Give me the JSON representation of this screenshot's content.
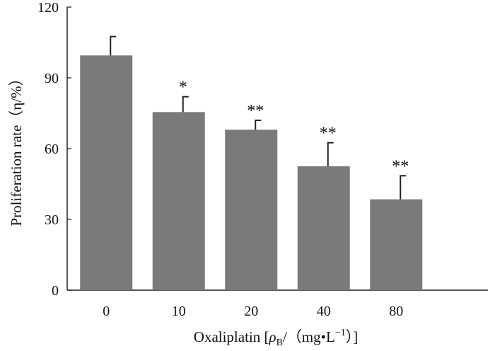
{
  "chart_data": {
    "type": "bar",
    "categories": [
      "0",
      "10",
      "20",
      "40",
      "80"
    ],
    "values": [
      99.5,
      75.5,
      68,
      52.5,
      38.5
    ],
    "errors": [
      8,
      6.5,
      4,
      10,
      10
    ],
    "significance": [
      "",
      "*",
      "**",
      "**",
      "**"
    ],
    "ylim": [
      0,
      120
    ],
    "yticks": [
      "0",
      "30",
      "60",
      "90",
      "120"
    ],
    "ylabel": "Proliferation rate（η/%）",
    "xlabel": "Oxaliplatin [ρB/(mg·L−1)]",
    "xlabel_parts": {
      "prefix": "Oxaliplatin [",
      "rho": "ρ",
      "rho_sub": "B",
      "mid": "/（mg",
      "dot": "•",
      "unit": "L",
      "exp": "−1",
      "close": "）]"
    },
    "grid": false,
    "colors": {
      "bar": "#7a7a7a",
      "axis": "#222222"
    }
  }
}
